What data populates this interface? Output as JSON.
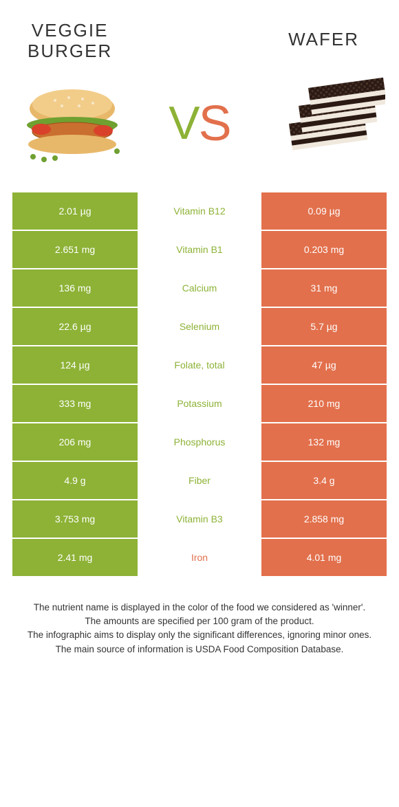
{
  "colors": {
    "green": "#8db236",
    "orange": "#e2704c",
    "mid_bg": "#ffffff",
    "green_text": "#8db236",
    "orange_text": "#e2704c",
    "vs_green": "#8db236",
    "vs_orange": "#e2704c"
  },
  "header": {
    "left_line1": "Veggie",
    "left_line2": "burger",
    "right": "Wafer"
  },
  "vs": {
    "v": "V",
    "s": "S"
  },
  "rows": [
    {
      "left": "2.01 µg",
      "mid": "Vitamin B12",
      "right": "0.09 µg",
      "winner": "left"
    },
    {
      "left": "2.651 mg",
      "mid": "Vitamin B1",
      "right": "0.203 mg",
      "winner": "left"
    },
    {
      "left": "136 mg",
      "mid": "Calcium",
      "right": "31 mg",
      "winner": "left"
    },
    {
      "left": "22.6 µg",
      "mid": "Selenium",
      "right": "5.7 µg",
      "winner": "left"
    },
    {
      "left": "124 µg",
      "mid": "Folate, total",
      "right": "47 µg",
      "winner": "left"
    },
    {
      "left": "333 mg",
      "mid": "Potassium",
      "right": "210 mg",
      "winner": "left"
    },
    {
      "left": "206 mg",
      "mid": "Phosphorus",
      "right": "132 mg",
      "winner": "left"
    },
    {
      "left": "4.9 g",
      "mid": "Fiber",
      "right": "3.4 g",
      "winner": "left"
    },
    {
      "left": "3.753 mg",
      "mid": "Vitamin B3",
      "right": "2.858 mg",
      "winner": "left"
    },
    {
      "left": "2.41 mg",
      "mid": "Iron",
      "right": "4.01 mg",
      "winner": "right"
    }
  ],
  "footer": {
    "l1": "The nutrient name is displayed in the color of the food we considered as 'winner'.",
    "l2": "The amounts are specified per 100 gram of the product.",
    "l3": "The infographic aims to display only the significant differences, ignoring minor ones.",
    "l4": "The main source of information is USDA Food Composition Database."
  }
}
